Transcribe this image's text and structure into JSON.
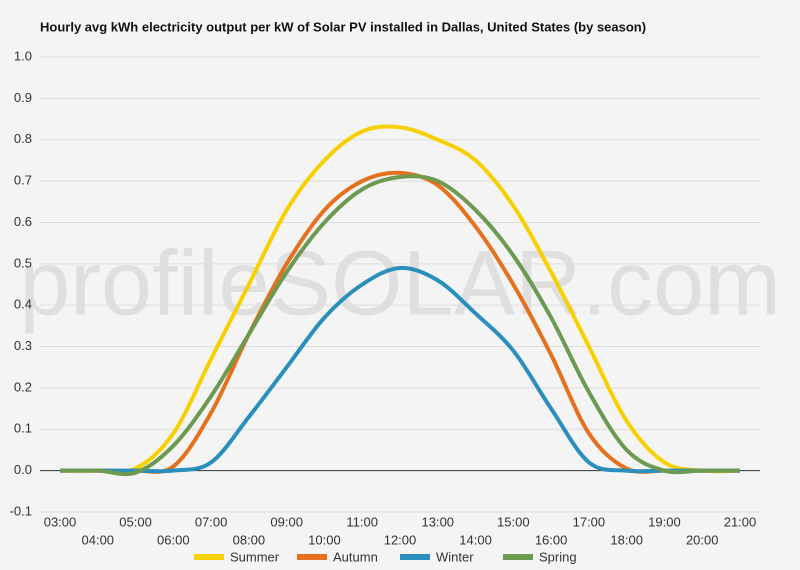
{
  "chart_data": {
    "type": "line",
    "title": "Hourly avg kWh electricity output per kW of Solar PV installed in Dallas, United States (by season)",
    "watermark": "profileSOLAR.com",
    "categories": [
      "03:00",
      "04:00",
      "05:00",
      "06:00",
      "07:00",
      "08:00",
      "09:00",
      "10:00",
      "11:00",
      "12:00",
      "13:00",
      "14:00",
      "15:00",
      "16:00",
      "17:00",
      "18:00",
      "19:00",
      "20:00",
      "21:00"
    ],
    "series": [
      {
        "name": "Summer",
        "color": "#f7d000",
        "values": [
          0,
          0,
          0.005,
          0.09,
          0.27,
          0.45,
          0.63,
          0.75,
          0.82,
          0.83,
          0.8,
          0.75,
          0.64,
          0.48,
          0.3,
          0.12,
          0.02,
          0,
          0
        ]
      },
      {
        "name": "Autumn",
        "color": "#e5711e",
        "values": [
          0,
          0,
          0,
          0.01,
          0.14,
          0.33,
          0.5,
          0.63,
          0.7,
          0.72,
          0.69,
          0.59,
          0.45,
          0.28,
          0.09,
          0.005,
          0,
          0,
          0
        ]
      },
      {
        "name": "Winter",
        "color": "#2b8fbd",
        "values": [
          0,
          0,
          0,
          0,
          0.02,
          0.13,
          0.25,
          0.37,
          0.45,
          0.49,
          0.46,
          0.38,
          0.29,
          0.15,
          0.02,
          0,
          0,
          0,
          0
        ]
      },
      {
        "name": "Spring",
        "color": "#6b9a50",
        "values": [
          0,
          0,
          -0.005,
          0.06,
          0.18,
          0.33,
          0.48,
          0.6,
          0.68,
          0.71,
          0.7,
          0.63,
          0.52,
          0.37,
          0.19,
          0.05,
          0,
          0,
          0
        ]
      }
    ],
    "ylim": [
      -0.1,
      1.0
    ],
    "yticks": [
      -0.1,
      {
        "value": 0,
        "label": "0.0"
      },
      0.1,
      0.2,
      0.3,
      0.4,
      0.5,
      0.6,
      0.7,
      0.8,
      0.9,
      {
        "value": 1,
        "label": "1.0"
      }
    ],
    "grid": true
  }
}
